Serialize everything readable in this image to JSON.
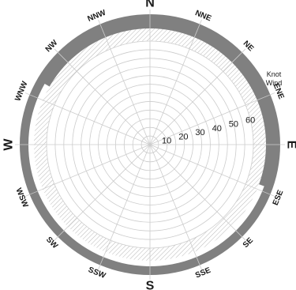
{
  "rose": {
    "directions": [
      {
        "label": "N",
        "bearing": 0,
        "major": true
      },
      {
        "label": "NNE",
        "bearing": 22.5,
        "major": false
      },
      {
        "label": "NE",
        "bearing": 45,
        "major": false
      },
      {
        "label": "ENE",
        "bearing": 67.5,
        "major": false
      },
      {
        "label": "E",
        "bearing": 90,
        "major": true
      },
      {
        "label": "ESE",
        "bearing": 112.5,
        "major": false
      },
      {
        "label": "SE",
        "bearing": 135,
        "major": false
      },
      {
        "label": "SSE",
        "bearing": 157.5,
        "major": false
      },
      {
        "label": "S",
        "bearing": 180,
        "major": true
      },
      {
        "label": "SSW",
        "bearing": 202.5,
        "major": false
      },
      {
        "label": "SW",
        "bearing": 225,
        "major": false
      },
      {
        "label": "WSW",
        "bearing": 247.5,
        "major": false
      },
      {
        "label": "W",
        "bearing": 270,
        "major": true
      },
      {
        "label": "WNW",
        "bearing": 292.5,
        "major": false
      },
      {
        "label": "NW",
        "bearing": 315,
        "major": false
      },
      {
        "label": "NNW",
        "bearing": 337.5,
        "major": false
      }
    ],
    "speed_scale": [
      10,
      20,
      30,
      40,
      50,
      60
    ],
    "speed_max": 60,
    "unit_lines": [
      "Knot",
      "Wind"
    ],
    "bearing_step": 22.5,
    "gap_sector": {
      "from_bearing": 110,
      "to_bearing": 300
    },
    "colors": {
      "band": "#808080",
      "grid": "#cccccc",
      "hatch": "#999999",
      "text": "#1a1a1a"
    }
  }
}
